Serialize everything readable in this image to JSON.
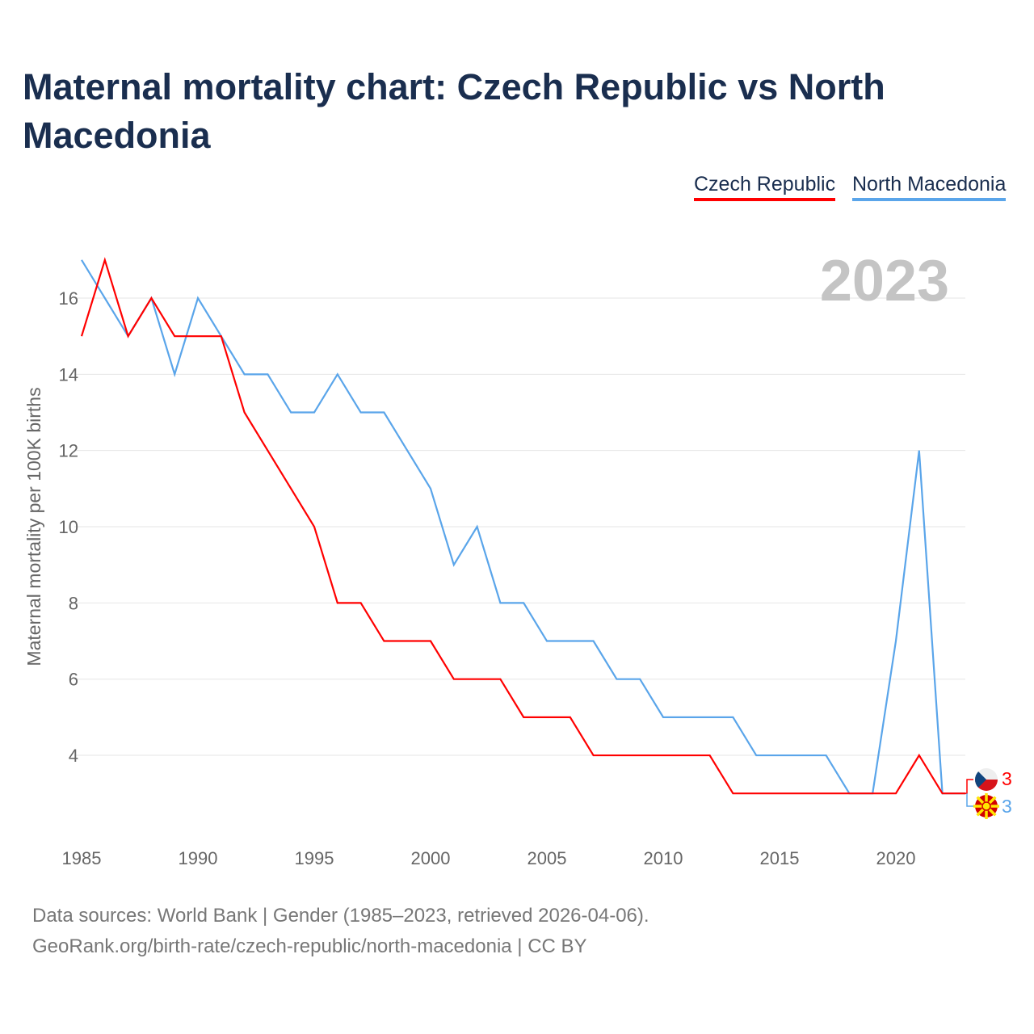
{
  "title": "Maternal mortality chart: Czech Republic vs North Macedonia",
  "year_label": "2023",
  "footer": {
    "line1": "Data sources: World Bank | Gender (1985–2023, retrieved 2026-04-06).",
    "line2": "GeoRank.org/birth-rate/czech-republic/north-macedonia | CC BY"
  },
  "chart_data": {
    "type": "line",
    "title": "Maternal mortality chart: Czech Republic vs North Macedonia",
    "xlabel": "",
    "ylabel": "Maternal mortality per 100K births",
    "x": [
      1985,
      1986,
      1987,
      1988,
      1989,
      1990,
      1991,
      1992,
      1993,
      1994,
      1995,
      1996,
      1997,
      1998,
      1999,
      2000,
      2001,
      2002,
      2003,
      2004,
      2005,
      2006,
      2007,
      2008,
      2009,
      2010,
      2011,
      2012,
      2013,
      2014,
      2015,
      2016,
      2017,
      2018,
      2019,
      2020,
      2021,
      2022,
      2023
    ],
    "xticks": [
      1985,
      1990,
      1995,
      2000,
      2005,
      2010,
      2015,
      2020
    ],
    "yticks": [
      4,
      6,
      8,
      10,
      12,
      14,
      16
    ],
    "xlim": [
      1985,
      2023
    ],
    "ylim": [
      2,
      17
    ],
    "legend": "top-right",
    "grid": true,
    "series": [
      {
        "name": "Czech Republic",
        "color": "#ff0000",
        "end_label": "3",
        "values": [
          15,
          17,
          15,
          16,
          15,
          15,
          15,
          13,
          12,
          11,
          10,
          8,
          8,
          7,
          7,
          7,
          6,
          6,
          6,
          5,
          5,
          5,
          4,
          4,
          4,
          4,
          4,
          4,
          3,
          3,
          3,
          3,
          3,
          3,
          3,
          3,
          4,
          3,
          3
        ]
      },
      {
        "name": "North Macedonia",
        "color": "#5aa5ea",
        "end_label": "3",
        "values": [
          17,
          16,
          15,
          16,
          14,
          16,
          15,
          14,
          14,
          13,
          13,
          14,
          13,
          13,
          12,
          11,
          9,
          10,
          8,
          8,
          7,
          7,
          7,
          6,
          6,
          5,
          5,
          5,
          5,
          4,
          4,
          4,
          4,
          3,
          3,
          7,
          12,
          3,
          3
        ]
      }
    ]
  }
}
